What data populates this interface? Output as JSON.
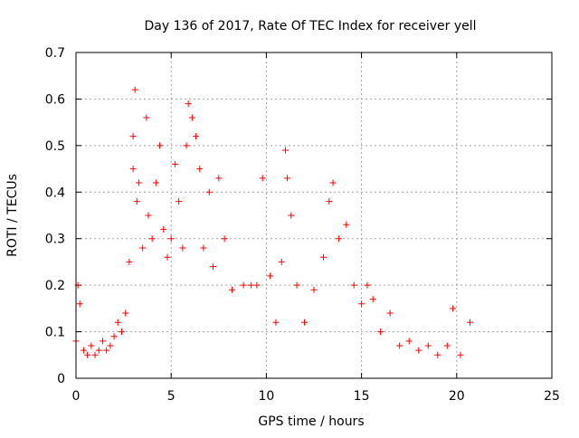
{
  "chart_data": {
    "type": "scatter",
    "title": "Day 136 of 2017, Rate Of TEC Index for receiver yell",
    "xlabel": "GPS time / hours",
    "ylabel": "ROTI / TECUs",
    "xlim": [
      0,
      25
    ],
    "ylim": [
      0,
      0.7
    ],
    "xticks": [
      0,
      5,
      10,
      15,
      20,
      25
    ],
    "yticks": [
      0,
      0.1,
      0.2,
      0.3,
      0.4,
      0.5,
      0.6,
      0.7
    ],
    "xtick_labels": [
      "0",
      "5",
      "10",
      "15",
      "20",
      "25"
    ],
    "ytick_labels": [
      "0",
      "0.1",
      "0.2",
      "0.3",
      "0.4",
      "0.5",
      "0.6",
      "0.7"
    ],
    "grid": true,
    "legend": "none",
    "marker": "+",
    "color": "#ff0000",
    "data_coverage_hours": [
      0,
      20.8
    ],
    "series": [
      {
        "values": [
          [
            0.0,
            0.08
          ],
          [
            0.1,
            0.2
          ],
          [
            0.2,
            0.16
          ],
          [
            0.4,
            0.06
          ],
          [
            0.6,
            0.05
          ],
          [
            0.8,
            0.07
          ],
          [
            1.0,
            0.05
          ],
          [
            1.2,
            0.06
          ],
          [
            1.4,
            0.08
          ],
          [
            1.6,
            0.06
          ],
          [
            1.8,
            0.07
          ],
          [
            2.0,
            0.09
          ],
          [
            2.2,
            0.12
          ],
          [
            2.4,
            0.1
          ],
          [
            2.6,
            0.14
          ],
          [
            2.8,
            0.25
          ],
          [
            3.0,
            0.45
          ],
          [
            3.0,
            0.52
          ],
          [
            3.1,
            0.62
          ],
          [
            3.2,
            0.38
          ],
          [
            3.3,
            0.42
          ],
          [
            3.5,
            0.28
          ],
          [
            3.7,
            0.56
          ],
          [
            3.8,
            0.35
          ],
          [
            4.0,
            0.3
          ],
          [
            4.2,
            0.42
          ],
          [
            4.4,
            0.5
          ],
          [
            4.6,
            0.32
          ],
          [
            4.8,
            0.26
          ],
          [
            5.0,
            0.3
          ],
          [
            5.2,
            0.46
          ],
          [
            5.4,
            0.38
          ],
          [
            5.6,
            0.28
          ],
          [
            5.8,
            0.5
          ],
          [
            5.9,
            0.59
          ],
          [
            6.1,
            0.56
          ],
          [
            6.3,
            0.52
          ],
          [
            6.5,
            0.45
          ],
          [
            6.7,
            0.28
          ],
          [
            7.0,
            0.4
          ],
          [
            7.2,
            0.24
          ],
          [
            7.5,
            0.43
          ],
          [
            7.8,
            0.3
          ],
          [
            8.2,
            0.19
          ],
          [
            8.8,
            0.2
          ],
          [
            9.2,
            0.2
          ],
          [
            9.5,
            0.2
          ],
          [
            9.8,
            0.43
          ],
          [
            10.2,
            0.22
          ],
          [
            10.5,
            0.12
          ],
          [
            10.8,
            0.25
          ],
          [
            11.0,
            0.49
          ],
          [
            11.1,
            0.43
          ],
          [
            11.3,
            0.35
          ],
          [
            11.6,
            0.2
          ],
          [
            12.0,
            0.12
          ],
          [
            12.5,
            0.19
          ],
          [
            13.0,
            0.26
          ],
          [
            13.3,
            0.38
          ],
          [
            13.5,
            0.42
          ],
          [
            13.8,
            0.3
          ],
          [
            14.2,
            0.33
          ],
          [
            14.6,
            0.2
          ],
          [
            15.0,
            0.16
          ],
          [
            15.3,
            0.2
          ],
          [
            15.6,
            0.17
          ],
          [
            16.0,
            0.1
          ],
          [
            16.5,
            0.14
          ],
          [
            17.0,
            0.07
          ],
          [
            17.5,
            0.08
          ],
          [
            18.0,
            0.06
          ],
          [
            18.5,
            0.07
          ],
          [
            19.0,
            0.05
          ],
          [
            19.5,
            0.07
          ],
          [
            19.8,
            0.15
          ],
          [
            20.2,
            0.05
          ],
          [
            20.7,
            0.12
          ]
        ]
      }
    ]
  }
}
